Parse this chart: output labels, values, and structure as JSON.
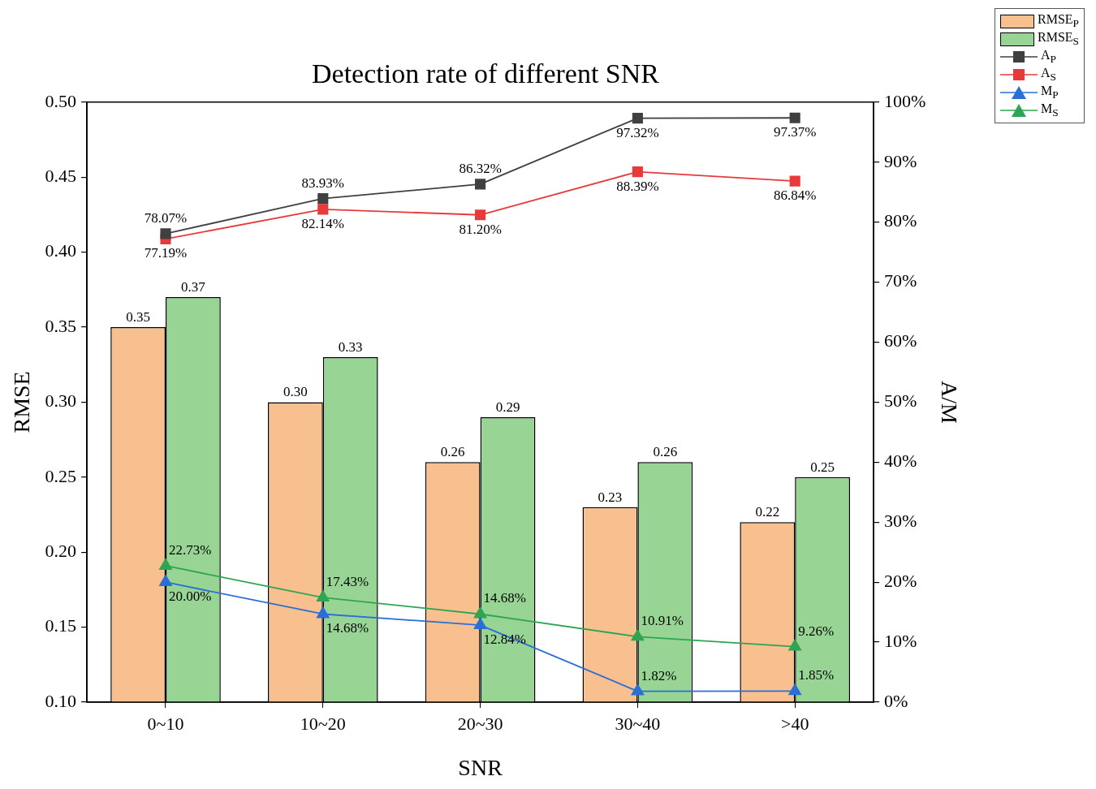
{
  "chart_data": {
    "type": "bar",
    "title": "Detection rate of different SNR",
    "xlabel": "SNR",
    "ylabel": "RMSE",
    "y2label": "A/M",
    "categories": [
      "0~10",
      "10~20",
      "20~30",
      "30~40",
      ">40"
    ],
    "series": [
      {
        "name": "RMSE$_{P}$",
        "color": "#f9c08f",
        "values": [
          0.35,
          0.3,
          0.26,
          0.23,
          0.22
        ],
        "value_labels": [
          "0.35",
          "0.30",
          "0.26",
          "0.23",
          "0.22"
        ]
      },
      {
        "name": "RMSE$_{S}$",
        "color": "#98d594",
        "values": [
          0.37,
          0.33,
          0.29,
          0.26,
          0.25
        ],
        "value_labels": [
          "0.37",
          "0.33",
          "0.29",
          "0.26",
          "0.25"
        ]
      },
      {
        "name": "A$_{P}$",
        "type": "line",
        "axis": "y2",
        "marker": "square",
        "color": "#404040",
        "values": [
          78.07,
          83.93,
          86.32,
          97.32,
          97.37
        ],
        "value_labels": [
          "78.07%",
          "83.93%",
          "86.32%",
          "97.32%",
          "97.37%"
        ]
      },
      {
        "name": "A$_{S}$",
        "type": "line",
        "axis": "y2",
        "marker": "square",
        "color": "#e83a3a",
        "values": [
          77.19,
          82.14,
          81.2,
          88.39,
          86.84
        ],
        "value_labels": [
          "77.19%",
          "82.14%",
          "81.20%",
          "88.39%",
          "86.84%"
        ]
      },
      {
        "name": "M$_{P}$",
        "type": "line",
        "axis": "y2",
        "marker": "triangle",
        "color": "#2a6fd6",
        "values": [
          20.0,
          14.68,
          12.84,
          1.82,
          1.85
        ],
        "value_labels": [
          "20.00%",
          "14.68%",
          "12.84%",
          "1.82%",
          "1.85%"
        ]
      },
      {
        "name": "M$_{S}$",
        "type": "line",
        "axis": "y2",
        "marker": "triangle",
        "color": "#2ea552",
        "values": [
          22.73,
          17.43,
          14.68,
          10.91,
          9.26
        ],
        "value_labels": [
          "22.73%",
          "17.43%",
          "14.68%",
          "10.91%",
          "9.26%"
        ]
      }
    ],
    "ylim": [
      0.1,
      0.5
    ],
    "yticks": [
      {
        "value": 0.1,
        "label": "0.10"
      },
      {
        "value": 0.15,
        "label": "0.15"
      },
      {
        "value": 0.2,
        "label": "0.20"
      },
      {
        "value": 0.25,
        "label": "0.25"
      },
      {
        "value": 0.3,
        "label": "0.30"
      },
      {
        "value": 0.35,
        "label": "0.35"
      },
      {
        "value": 0.4,
        "label": "0.40"
      },
      {
        "value": 0.45,
        "label": "0.45"
      },
      {
        "value": 0.5,
        "label": "0.50"
      }
    ],
    "y2lim": [
      0,
      100
    ],
    "y2ticks": [
      {
        "value": 0,
        "label": "0%"
      },
      {
        "value": 10,
        "label": "10%"
      },
      {
        "value": 20,
        "label": "20%"
      },
      {
        "value": 30,
        "label": "30%"
      },
      {
        "value": 40,
        "label": "40%"
      },
      {
        "value": 50,
        "label": "50%"
      },
      {
        "value": 60,
        "label": "60%"
      },
      {
        "value": 70,
        "label": "70%"
      },
      {
        "value": 80,
        "label": "80%"
      },
      {
        "value": 90,
        "label": "90%"
      },
      {
        "value": 100,
        "label": "100%"
      }
    ],
    "grid": false,
    "legend": "top right",
    "line_style": "solid"
  }
}
